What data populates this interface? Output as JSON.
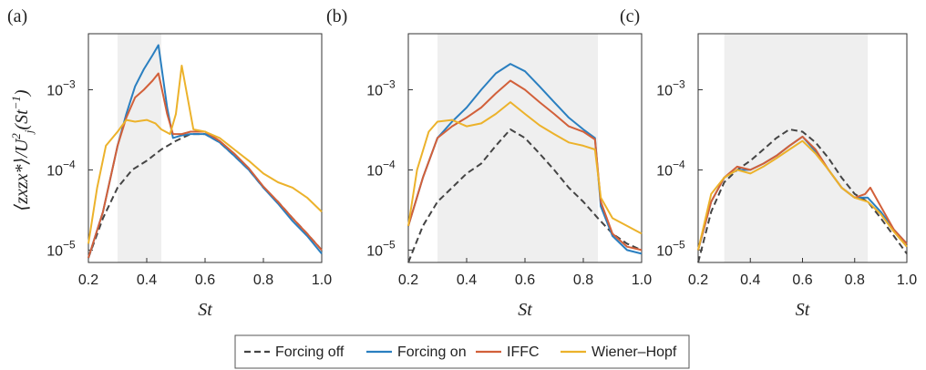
{
  "ylabel": "⟨z_x z_x*⟩/U_j²(St⁻¹)",
  "ylabel_main": "⟨zxzx*⟩/U",
  "ylabel_tail": "(St",
  "ylabel_sup": "−1",
  "ylabel_close": ")",
  "series_colors": {
    "Forcing off": "#444444",
    "Forcing on": "#2a7fc0",
    "IFFC": "#d2603a",
    "Wiener–Hopf": "#ecb22b"
  },
  "shade_color": "#efefef",
  "legend": [
    {
      "name": "Forcing off",
      "style": "dashed"
    },
    {
      "name": "Forcing on",
      "style": "solid"
    },
    {
      "name": "IFFC",
      "style": "solid"
    },
    {
      "name": "Wiener–Hopf",
      "style": "solid"
    }
  ],
  "chart_data": [
    {
      "type": "line",
      "panel_label": "(a)",
      "xlabel": "St",
      "ylabel": "⟨z_x z_x*⟩/U_j²(St⁻¹)",
      "xlim": [
        0.2,
        1.0
      ],
      "ylim": [
        7e-06,
        0.005
      ],
      "yscale": "log",
      "xticks": [
        "0.2",
        "0.4",
        "0.6",
        "0.8",
        "1.0"
      ],
      "yticks": [
        {
          "v": 1e-05,
          "label": "10−5"
        },
        {
          "v": 0.0001,
          "label": "10−4"
        },
        {
          "v": 0.001,
          "label": "10−3"
        }
      ],
      "shaded_range": [
        0.3,
        0.45
      ],
      "series": [
        {
          "name": "Forcing off",
          "x": [
            0.2,
            0.25,
            0.3,
            0.35,
            0.4,
            0.45,
            0.5,
            0.55,
            0.6,
            0.65,
            0.7,
            0.75,
            0.8,
            0.85,
            0.9,
            0.95,
            1.0
          ],
          "y": [
            8e-06,
            2.5e-05,
            6e-05,
            0.0001,
            0.00013,
            0.00018,
            0.00023,
            0.00028,
            0.00028,
            0.00022,
            0.00015,
            0.0001,
            6e-05,
            4e-05,
            2.5e-05,
            1.6e-05,
            1e-05
          ]
        },
        {
          "name": "Forcing on",
          "x": [
            0.2,
            0.25,
            0.3,
            0.33,
            0.36,
            0.39,
            0.42,
            0.44,
            0.45,
            0.47,
            0.49,
            0.52,
            0.55,
            0.6,
            0.65,
            0.7,
            0.75,
            0.8,
            0.85,
            0.9,
            0.95,
            1.0
          ],
          "y": [
            8e-06,
            3e-05,
            0.0002,
            0.0005,
            0.0011,
            0.0018,
            0.0027,
            0.0036,
            0.002,
            0.0006,
            0.00025,
            0.00027,
            0.00028,
            0.00028,
            0.00022,
            0.00015,
            0.0001,
            6e-05,
            3.8e-05,
            2.3e-05,
            1.5e-05,
            9e-06
          ]
        },
        {
          "name": "IFFC",
          "x": [
            0.2,
            0.25,
            0.3,
            0.33,
            0.36,
            0.39,
            0.42,
            0.44,
            0.45,
            0.47,
            0.49,
            0.52,
            0.55,
            0.6,
            0.65,
            0.7,
            0.75,
            0.8,
            0.85,
            0.9,
            0.95,
            1.0
          ],
          "y": [
            8e-06,
            3e-05,
            0.0002,
            0.00045,
            0.0008,
            0.001,
            0.0013,
            0.0016,
            0.0011,
            0.0005,
            0.00028,
            0.00028,
            0.0003,
            0.0003,
            0.00023,
            0.00016,
            0.000105,
            6.2e-05,
            4e-05,
            2.5e-05,
            1.6e-05,
            1e-05
          ]
        },
        {
          "name": "Wiener–Hopf",
          "x": [
            0.2,
            0.23,
            0.26,
            0.3,
            0.33,
            0.36,
            0.4,
            0.43,
            0.45,
            0.48,
            0.5,
            0.52,
            0.54,
            0.56,
            0.6,
            0.65,
            0.7,
            0.75,
            0.8,
            0.85,
            0.9,
            0.95,
            1.0
          ],
          "y": [
            1.2e-05,
            6e-05,
            0.0002,
            0.0003,
            0.00042,
            0.0004,
            0.00042,
            0.00038,
            0.00032,
            0.00028,
            0.0005,
            0.002,
            0.0008,
            0.00032,
            0.0003,
            0.00025,
            0.00018,
            0.00013,
            9e-05,
            7e-05,
            6e-05,
            4.5e-05,
            3e-05
          ]
        }
      ]
    },
    {
      "type": "line",
      "panel_label": "(b)",
      "xlabel": "St",
      "ylabel": "",
      "xlim": [
        0.2,
        1.0
      ],
      "ylim": [
        7e-06,
        0.005
      ],
      "yscale": "log",
      "xticks": [
        "0.2",
        "0.4",
        "0.6",
        "0.8",
        "1.0"
      ],
      "yticks": [
        {
          "v": 1e-05,
          "label": "10−5"
        },
        {
          "v": 0.0001,
          "label": "10−4"
        },
        {
          "v": 0.001,
          "label": "10−3"
        }
      ],
      "shaded_range": [
        0.3,
        0.85
      ],
      "series": [
        {
          "name": "Forcing off",
          "x": [
            0.2,
            0.25,
            0.3,
            0.35,
            0.4,
            0.45,
            0.5,
            0.55,
            0.6,
            0.65,
            0.7,
            0.75,
            0.8,
            0.85,
            0.9,
            0.95,
            1.0
          ],
          "y": [
            7e-06,
            2e-05,
            4e-05,
            6e-05,
            9e-05,
            0.00012,
            0.0002,
            0.00032,
            0.00025,
            0.00016,
            0.0001,
            6e-05,
            4e-05,
            2.5e-05,
            1.6e-05,
            1.2e-05,
            1e-05
          ]
        },
        {
          "name": "Forcing on",
          "x": [
            0.2,
            0.25,
            0.3,
            0.35,
            0.4,
            0.45,
            0.5,
            0.55,
            0.6,
            0.65,
            0.7,
            0.75,
            0.8,
            0.84,
            0.86,
            0.9,
            0.95,
            1.0
          ],
          "y": [
            2e-05,
            8e-05,
            0.00025,
            0.0004,
            0.0006,
            0.001,
            0.0016,
            0.0021,
            0.0017,
            0.0011,
            0.0007,
            0.00045,
            0.00032,
            0.00025,
            3.5e-05,
            1.5e-05,
            1e-05,
            9e-06
          ]
        },
        {
          "name": "IFFC",
          "x": [
            0.2,
            0.25,
            0.3,
            0.35,
            0.4,
            0.45,
            0.5,
            0.55,
            0.6,
            0.65,
            0.7,
            0.75,
            0.8,
            0.84,
            0.86,
            0.9,
            0.95,
            1.0
          ],
          "y": [
            2e-05,
            8e-05,
            0.00025,
            0.00035,
            0.00045,
            0.0006,
            0.0009,
            0.0013,
            0.001,
            0.0007,
            0.0005,
            0.00035,
            0.0003,
            0.00024,
            4e-05,
            1.6e-05,
            1.1e-05,
            1e-05
          ]
        },
        {
          "name": "Wiener–Hopf",
          "x": [
            0.2,
            0.23,
            0.27,
            0.3,
            0.35,
            0.4,
            0.45,
            0.5,
            0.55,
            0.6,
            0.65,
            0.7,
            0.75,
            0.8,
            0.84,
            0.86,
            0.9,
            0.95,
            1.0
          ],
          "y": [
            2e-05,
            0.0001,
            0.0003,
            0.0004,
            0.00042,
            0.00035,
            0.00038,
            0.0005,
            0.0007,
            0.0005,
            0.00036,
            0.00028,
            0.00022,
            0.0002,
            0.00018,
            4.5e-05,
            2.5e-05,
            2e-05,
            1.6e-05
          ]
        }
      ]
    },
    {
      "type": "line",
      "panel_label": "(c)",
      "xlabel": "St",
      "ylabel": "",
      "xlim": [
        0.2,
        1.0
      ],
      "ylim": [
        7e-06,
        0.005
      ],
      "yscale": "log",
      "xticks": [
        "0.2",
        "0.4",
        "0.6",
        "0.8",
        "1.0"
      ],
      "yticks": [
        {
          "v": 1e-05,
          "label": "10−5"
        },
        {
          "v": 0.0001,
          "label": "10−4"
        },
        {
          "v": 0.001,
          "label": "10−3"
        }
      ],
      "shaded_range": [
        0.3,
        0.85
      ],
      "series": [
        {
          "name": "Forcing off",
          "x": [
            0.2,
            0.25,
            0.3,
            0.35,
            0.4,
            0.45,
            0.5,
            0.55,
            0.6,
            0.65,
            0.7,
            0.75,
            0.8,
            0.85,
            0.9,
            0.95,
            1.0
          ],
          "y": [
            7e-06,
            3e-05,
            7e-05,
            0.0001,
            0.00013,
            0.00018,
            0.00025,
            0.00032,
            0.0003,
            0.00022,
            0.00014,
            8e-05,
            5e-05,
            4e-05,
            2.5e-05,
            1.5e-05,
            9e-06
          ]
        },
        {
          "name": "Forcing on",
          "x": [
            0.2,
            0.25,
            0.3,
            0.35,
            0.4,
            0.45,
            0.5,
            0.55,
            0.6,
            0.65,
            0.7,
            0.75,
            0.8,
            0.85,
            0.9,
            0.95,
            1.0
          ],
          "y": [
            1e-05,
            4e-05,
            8e-05,
            0.0001,
            0.0001,
            0.00012,
            0.00015,
            0.0002,
            0.00026,
            0.00017,
            0.0001,
            6e-05,
            4.5e-05,
            4.5e-05,
            3e-05,
            1.8e-05,
            1.2e-05
          ]
        },
        {
          "name": "IFFC",
          "x": [
            0.2,
            0.25,
            0.3,
            0.35,
            0.4,
            0.45,
            0.5,
            0.55,
            0.6,
            0.65,
            0.7,
            0.75,
            0.8,
            0.84,
            0.86,
            0.9,
            0.95,
            1.0
          ],
          "y": [
            1e-05,
            4e-05,
            8e-05,
            0.00011,
            0.0001,
            0.00012,
            0.00015,
            0.0002,
            0.00026,
            0.00018,
            0.0001,
            6e-05,
            4.5e-05,
            5e-05,
            6e-05,
            3.5e-05,
            1.8e-05,
            1.2e-05
          ]
        },
        {
          "name": "Wiener–Hopf",
          "x": [
            0.2,
            0.25,
            0.3,
            0.35,
            0.4,
            0.45,
            0.5,
            0.55,
            0.6,
            0.65,
            0.7,
            0.75,
            0.8,
            0.85,
            0.9,
            0.95,
            1.0
          ],
          "y": [
            1e-05,
            5e-05,
            8e-05,
            0.0001,
            9e-05,
            0.00011,
            0.00014,
            0.00018,
            0.00023,
            0.00016,
            0.0001,
            6e-05,
            4.5e-05,
            4e-05,
            2.8e-05,
            1.7e-05,
            1.1e-05
          ]
        }
      ]
    }
  ]
}
